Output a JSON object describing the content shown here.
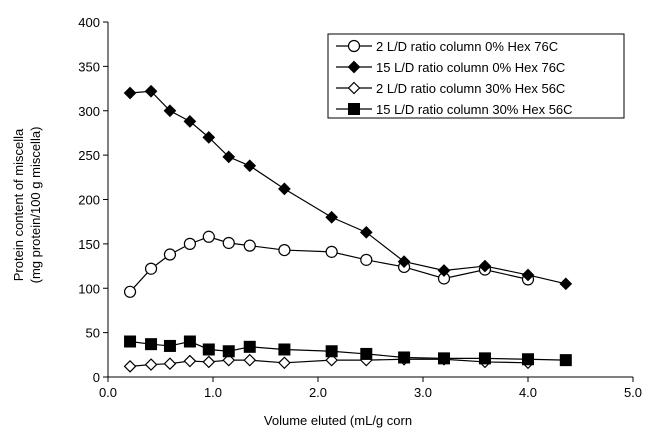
{
  "chart_data": {
    "type": "line",
    "title": "",
    "xlabel": "Volume eluted (mL/g corn",
    "ylabel": [
      "Protein content of miscella",
      "(mg protein/100 g miscella)"
    ],
    "xlim": [
      0,
      5
    ],
    "ylim": [
      0,
      400
    ],
    "x_ticks": [
      "0.0",
      "1.0",
      "2.0",
      "3.0",
      "4.0",
      "5.0"
    ],
    "y_ticks": [
      "0",
      "50",
      "100",
      "150",
      "200",
      "250",
      "300",
      "350",
      "400"
    ],
    "legend_position": "top-right",
    "grid": false,
    "series": [
      {
        "name": "2 L/D ratio column 0% Hex 76C",
        "marker": "circle-open",
        "color": "#000000",
        "points": [
          [
            0.21,
            96
          ],
          [
            0.41,
            122
          ],
          [
            0.59,
            138
          ],
          [
            0.78,
            150
          ],
          [
            0.96,
            158
          ],
          [
            1.15,
            151
          ],
          [
            1.35,
            148
          ],
          [
            1.68,
            143
          ],
          [
            2.13,
            141
          ],
          [
            2.46,
            132
          ],
          [
            2.82,
            124
          ],
          [
            3.2,
            111
          ],
          [
            3.59,
            121
          ],
          [
            4.0,
            110
          ]
        ]
      },
      {
        "name": "15 L/D ratio column 0% Hex 76C",
        "marker": "diamond-filled",
        "color": "#000000",
        "points": [
          [
            0.21,
            320
          ],
          [
            0.41,
            322
          ],
          [
            0.59,
            300
          ],
          [
            0.78,
            288
          ],
          [
            0.96,
            270
          ],
          [
            1.15,
            248
          ],
          [
            1.35,
            238
          ],
          [
            1.68,
            212
          ],
          [
            2.13,
            180
          ],
          [
            2.46,
            163
          ],
          [
            2.82,
            130
          ],
          [
            3.2,
            120
          ],
          [
            3.59,
            125
          ],
          [
            4.0,
            115
          ],
          [
            4.36,
            105
          ]
        ]
      },
      {
        "name": "2 L/D ratio column 30% Hex 56C",
        "marker": "diamond-open",
        "color": "#000000",
        "points": [
          [
            0.21,
            12
          ],
          [
            0.41,
            14
          ],
          [
            0.59,
            15
          ],
          [
            0.78,
            18
          ],
          [
            0.96,
            17
          ],
          [
            1.15,
            19
          ],
          [
            1.35,
            19
          ],
          [
            1.68,
            16
          ],
          [
            2.13,
            19
          ],
          [
            2.46,
            19
          ],
          [
            2.82,
            20
          ],
          [
            3.2,
            20
          ],
          [
            3.59,
            17
          ],
          [
            4.0,
            16
          ]
        ]
      },
      {
        "name": "15 L/D ratio column 30% Hex 56C",
        "marker": "square-filled",
        "color": "#000000",
        "points": [
          [
            0.21,
            40
          ],
          [
            0.41,
            37
          ],
          [
            0.59,
            35
          ],
          [
            0.78,
            40
          ],
          [
            0.96,
            31
          ],
          [
            1.15,
            29
          ],
          [
            1.35,
            34
          ],
          [
            1.68,
            31
          ],
          [
            2.13,
            29
          ],
          [
            2.46,
            26
          ],
          [
            2.82,
            22
          ],
          [
            3.2,
            21
          ],
          [
            3.59,
            21
          ],
          [
            4.0,
            20
          ],
          [
            4.36,
            19
          ]
        ]
      }
    ]
  }
}
